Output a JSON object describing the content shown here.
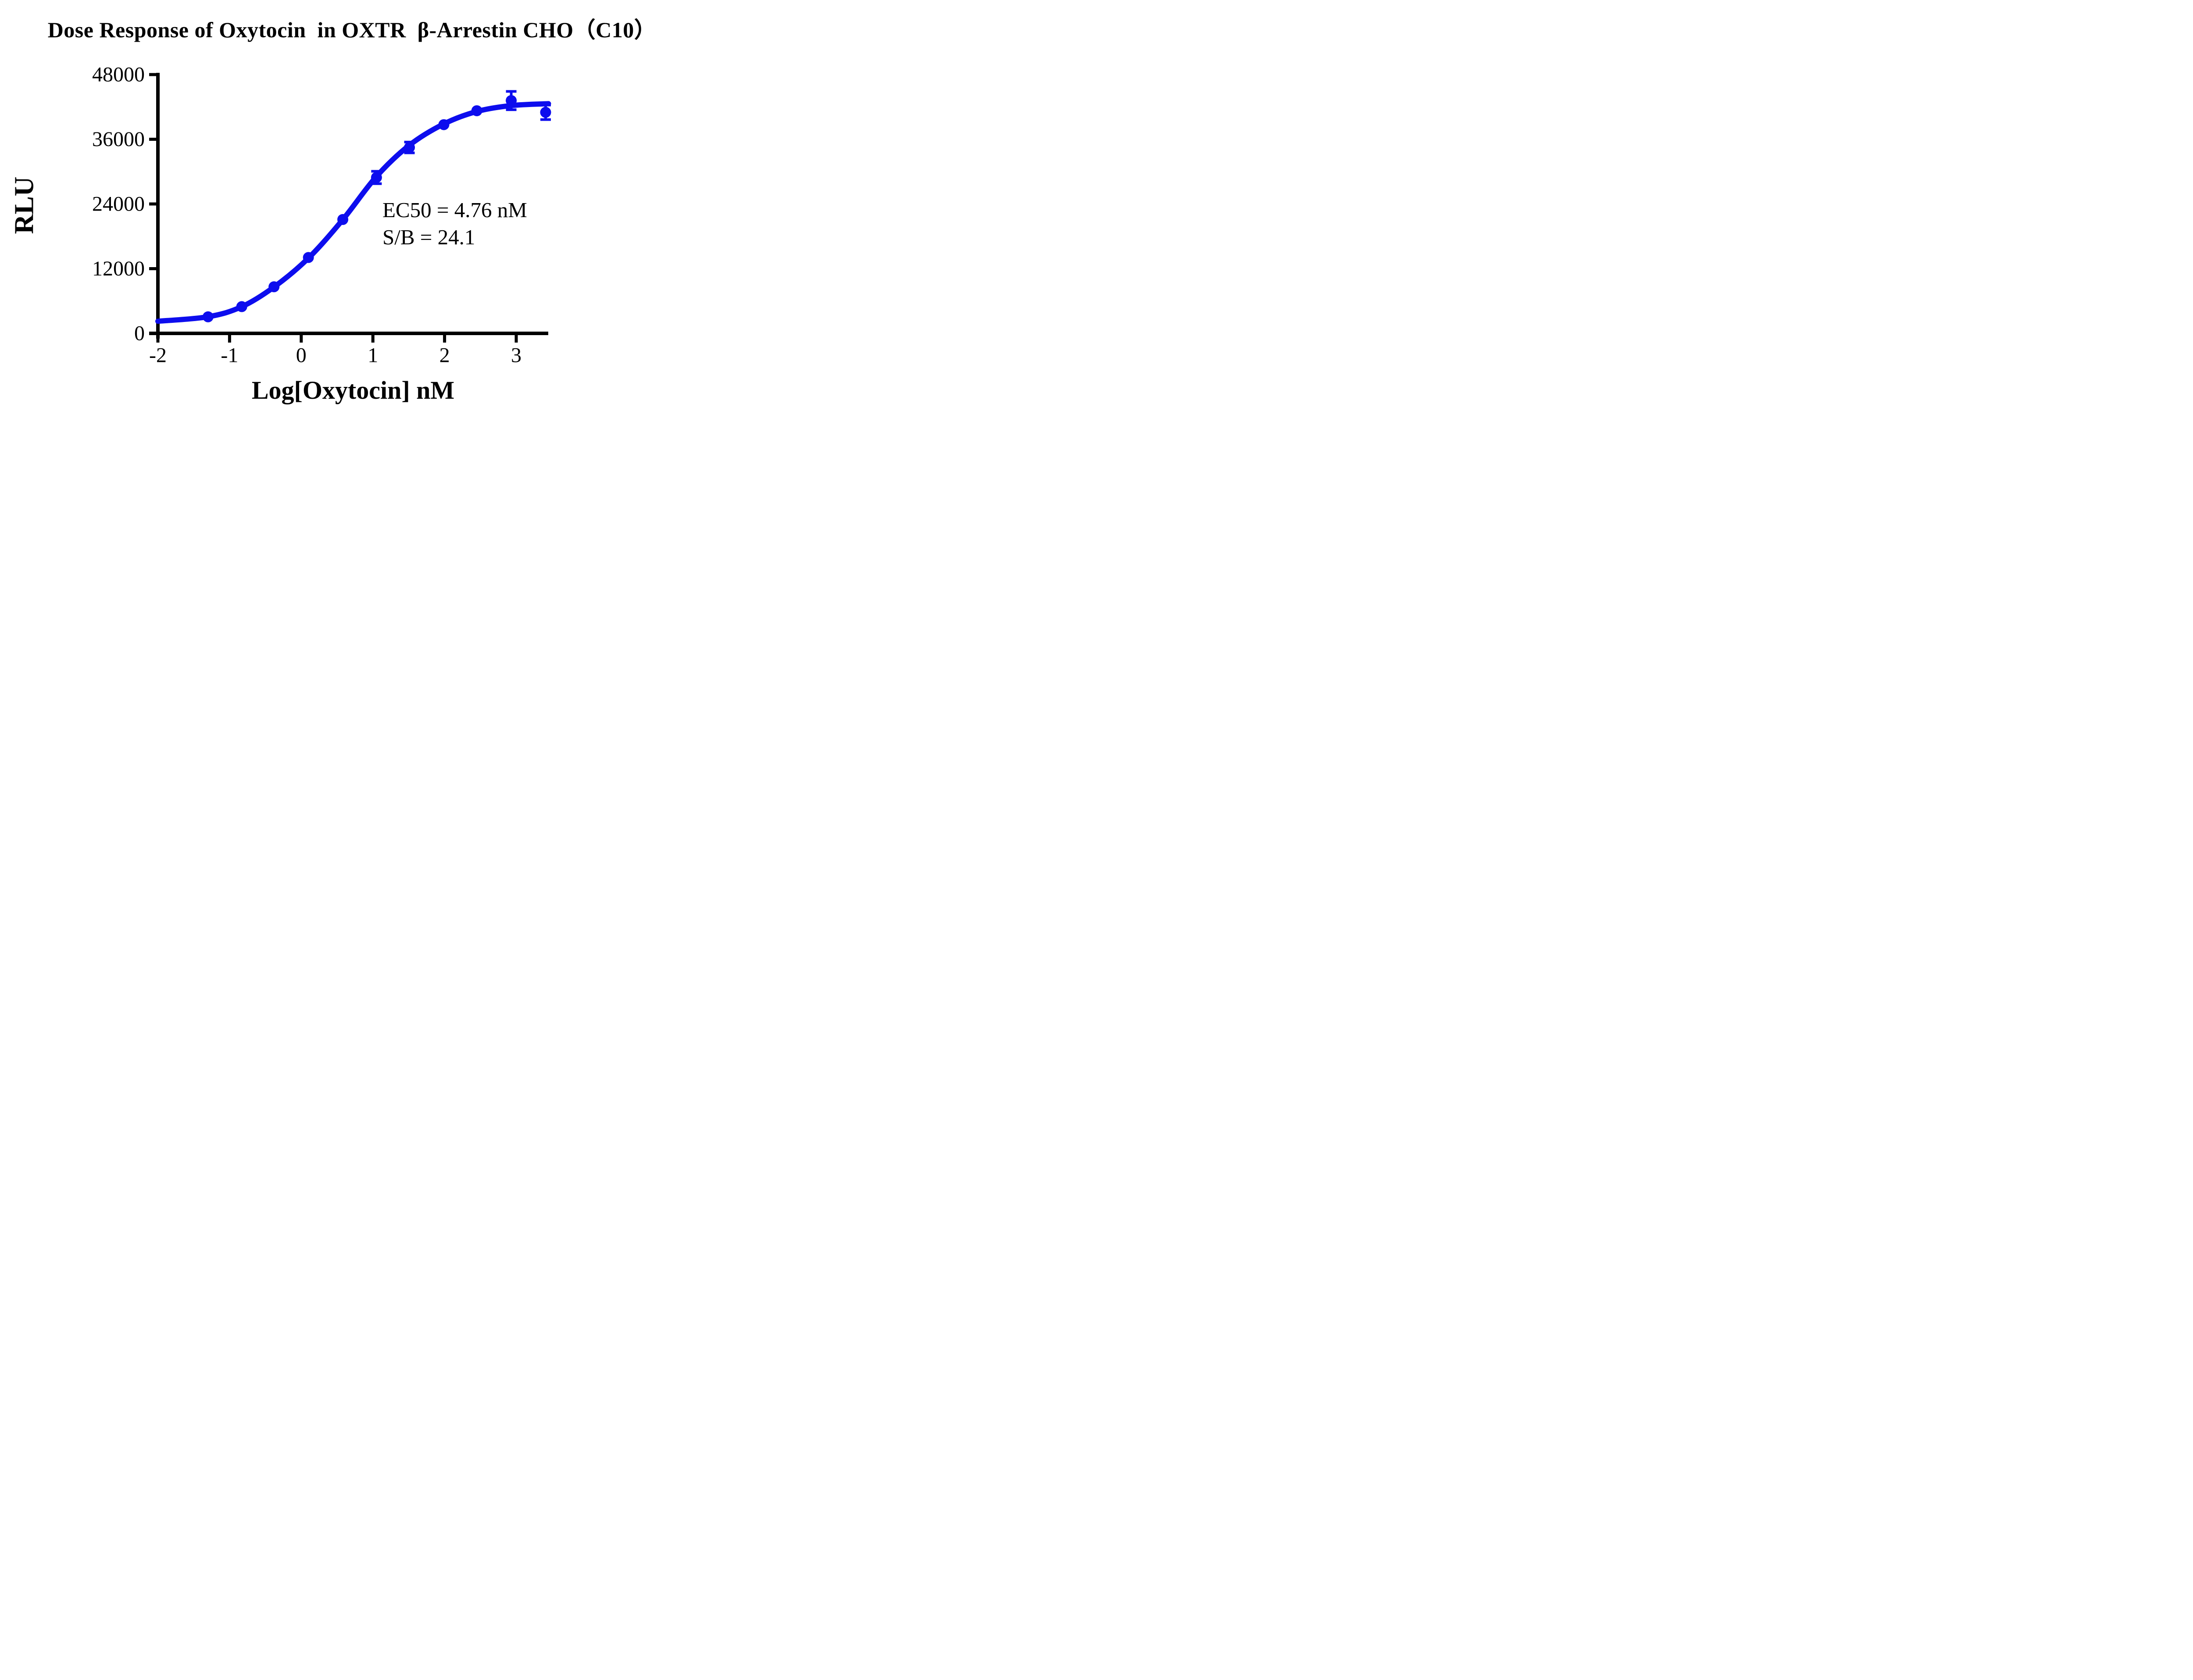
{
  "chart_data": {
    "type": "scatter",
    "title": "Dose Response of Oxytocin  in OXTR  β-Arrestin CHO（C10）",
    "xlabel": "Log[Oxytocin] nM",
    "ylabel": "RLU",
    "xlim": [
      -2,
      3.45
    ],
    "ylim": [
      0,
      48000
    ],
    "x_ticks": [
      -2,
      -1,
      0,
      1,
      2,
      3
    ],
    "y_ticks": [
      0,
      12000,
      24000,
      36000,
      48000
    ],
    "grid": false,
    "legend_position": "none",
    "axis_color": "#000000",
    "series": [
      {
        "name": "Oxytocin",
        "color": "#0d0dee",
        "marker": "circle",
        "points": [
          {
            "x": -1.3,
            "y": 3070,
            "err": null
          },
          {
            "x": -0.83,
            "y": 4960,
            "err": null
          },
          {
            "x": -0.38,
            "y": 8640,
            "err": null
          },
          {
            "x": 0.1,
            "y": 14070,
            "err": null
          },
          {
            "x": 0.58,
            "y": 21120,
            "err": null
          },
          {
            "x": 1.05,
            "y": 28910,
            "err": 1150
          },
          {
            "x": 1.51,
            "y": 34480,
            "err": 1000
          },
          {
            "x": 1.99,
            "y": 38710,
            "err": null
          },
          {
            "x": 2.45,
            "y": 41290,
            "err": null
          },
          {
            "x": 2.93,
            "y": 43180,
            "err": 1700
          },
          {
            "x": 3.41,
            "y": 41000,
            "err": 1350
          }
        ]
      }
    ],
    "fit_curve": {
      "model": "4PL sigmoid fit",
      "color": "#0d0dee",
      "anchors": [
        [
          -2.0,
          2250
        ],
        [
          -1.3,
          3080
        ],
        [
          -0.83,
          4950
        ],
        [
          -0.38,
          8600
        ],
        [
          0.1,
          13950
        ],
        [
          0.58,
          21100
        ],
        [
          1.05,
          29100
        ],
        [
          1.51,
          34900
        ],
        [
          1.99,
          38850
        ],
        [
          2.45,
          41150
        ],
        [
          2.93,
          42250
        ],
        [
          3.45,
          42600
        ]
      ]
    },
    "annotation": {
      "line1": "EC50 = 4.76 nM",
      "line2": "S/B = 24.1"
    }
  }
}
